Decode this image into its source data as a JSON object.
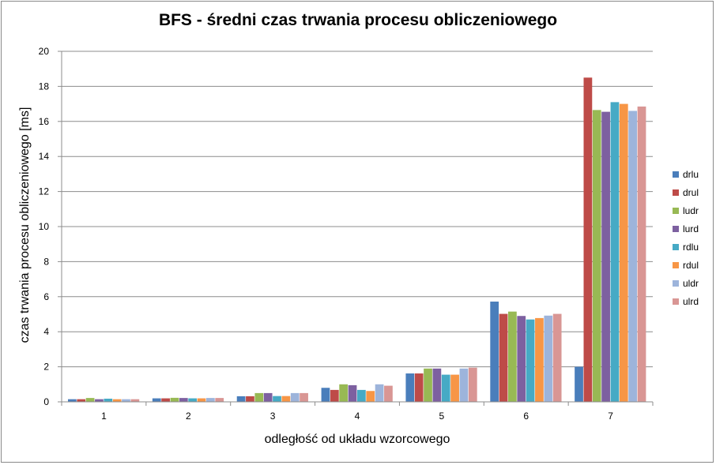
{
  "chart_data": {
    "type": "bar",
    "title": "BFS - średni czas trwania procesu obliczeniowego",
    "xlabel": "odległość od układu wzorcowego",
    "ylabel": "czas trwania procesu obliczeniowego [ms]",
    "ylim": [
      0,
      20
    ],
    "yticks": [
      "0",
      "2",
      "4",
      "6",
      "8",
      "10",
      "12",
      "14",
      "16",
      "18",
      "20"
    ],
    "categories": [
      "1",
      "2",
      "3",
      "4",
      "5",
      "6",
      "7"
    ],
    "grid": "horizontal",
    "legend_position": "right",
    "series": [
      {
        "name": "drlu",
        "color": "#4A7EBB",
        "values": [
          0.15,
          0.2,
          0.32,
          0.8,
          1.62,
          5.72,
          2.0
        ]
      },
      {
        "name": "drul",
        "color": "#BE4B48",
        "values": [
          0.15,
          0.2,
          0.32,
          0.68,
          1.62,
          5.02,
          18.5
        ]
      },
      {
        "name": "ludr",
        "color": "#98B954",
        "values": [
          0.22,
          0.23,
          0.5,
          1.0,
          1.9,
          5.15,
          16.65
        ]
      },
      {
        "name": "lurd",
        "color": "#7D60A0",
        "values": [
          0.15,
          0.22,
          0.5,
          0.95,
          1.9,
          4.9,
          16.55
        ]
      },
      {
        "name": "rdlu",
        "color": "#46AAC5",
        "values": [
          0.18,
          0.2,
          0.33,
          0.68,
          1.55,
          4.7,
          17.1
        ]
      },
      {
        "name": "rdul",
        "color": "#F79646",
        "values": [
          0.15,
          0.2,
          0.33,
          0.62,
          1.55,
          4.78,
          17.0
        ]
      },
      {
        "name": "uldr",
        "color": "#9DB4DB",
        "values": [
          0.15,
          0.22,
          0.5,
          1.0,
          1.9,
          4.92,
          16.6
        ]
      },
      {
        "name": "ulrd",
        "color": "#D99694",
        "values": [
          0.15,
          0.22,
          0.5,
          0.92,
          1.95,
          5.02,
          16.85
        ]
      }
    ]
  }
}
